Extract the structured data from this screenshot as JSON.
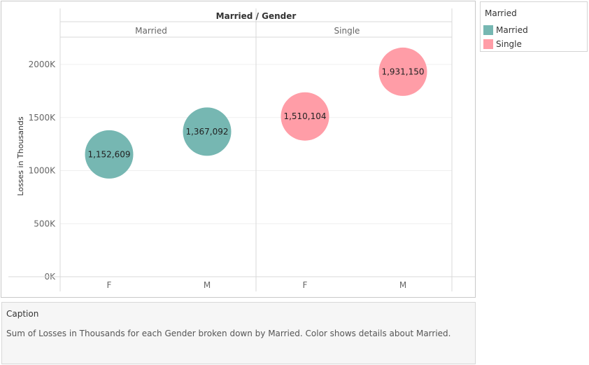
{
  "chart_data": {
    "type": "scatter",
    "title": "Married / Gender",
    "ylabel": "Losses in Thousands",
    "ylim": [
      0,
      2200000
    ],
    "yticks": [
      0,
      500000,
      1000000,
      1500000,
      2000000
    ],
    "ytick_labels": [
      "0K",
      "500K",
      "1000K",
      "1500K",
      "2000K"
    ],
    "panels": [
      "Married",
      "Single"
    ],
    "categories": [
      "F",
      "M"
    ],
    "points": [
      {
        "panel": "Married",
        "gender": "F",
        "value": 1152609,
        "label": "1,152,609",
        "color": "#76b7b2"
      },
      {
        "panel": "Married",
        "gender": "M",
        "value": 1367092,
        "label": "1,367,092",
        "color": "#76b7b2"
      },
      {
        "panel": "Single",
        "gender": "F",
        "value": 1510104,
        "label": "1,510,104",
        "color": "#ff9da7"
      },
      {
        "panel": "Single",
        "gender": "M",
        "value": 1931150,
        "label": "1,931,150",
        "color": "#ff9da7"
      }
    ],
    "grid": true
  },
  "legend": {
    "title": "Married",
    "items": [
      {
        "label": "Married",
        "color": "#76b7b2"
      },
      {
        "label": "Single",
        "color": "#ff9da7"
      }
    ]
  },
  "caption": {
    "title": "Caption",
    "text": "Sum of Losses in Thousands for each Gender broken down by Married.  Color shows details about Married."
  }
}
